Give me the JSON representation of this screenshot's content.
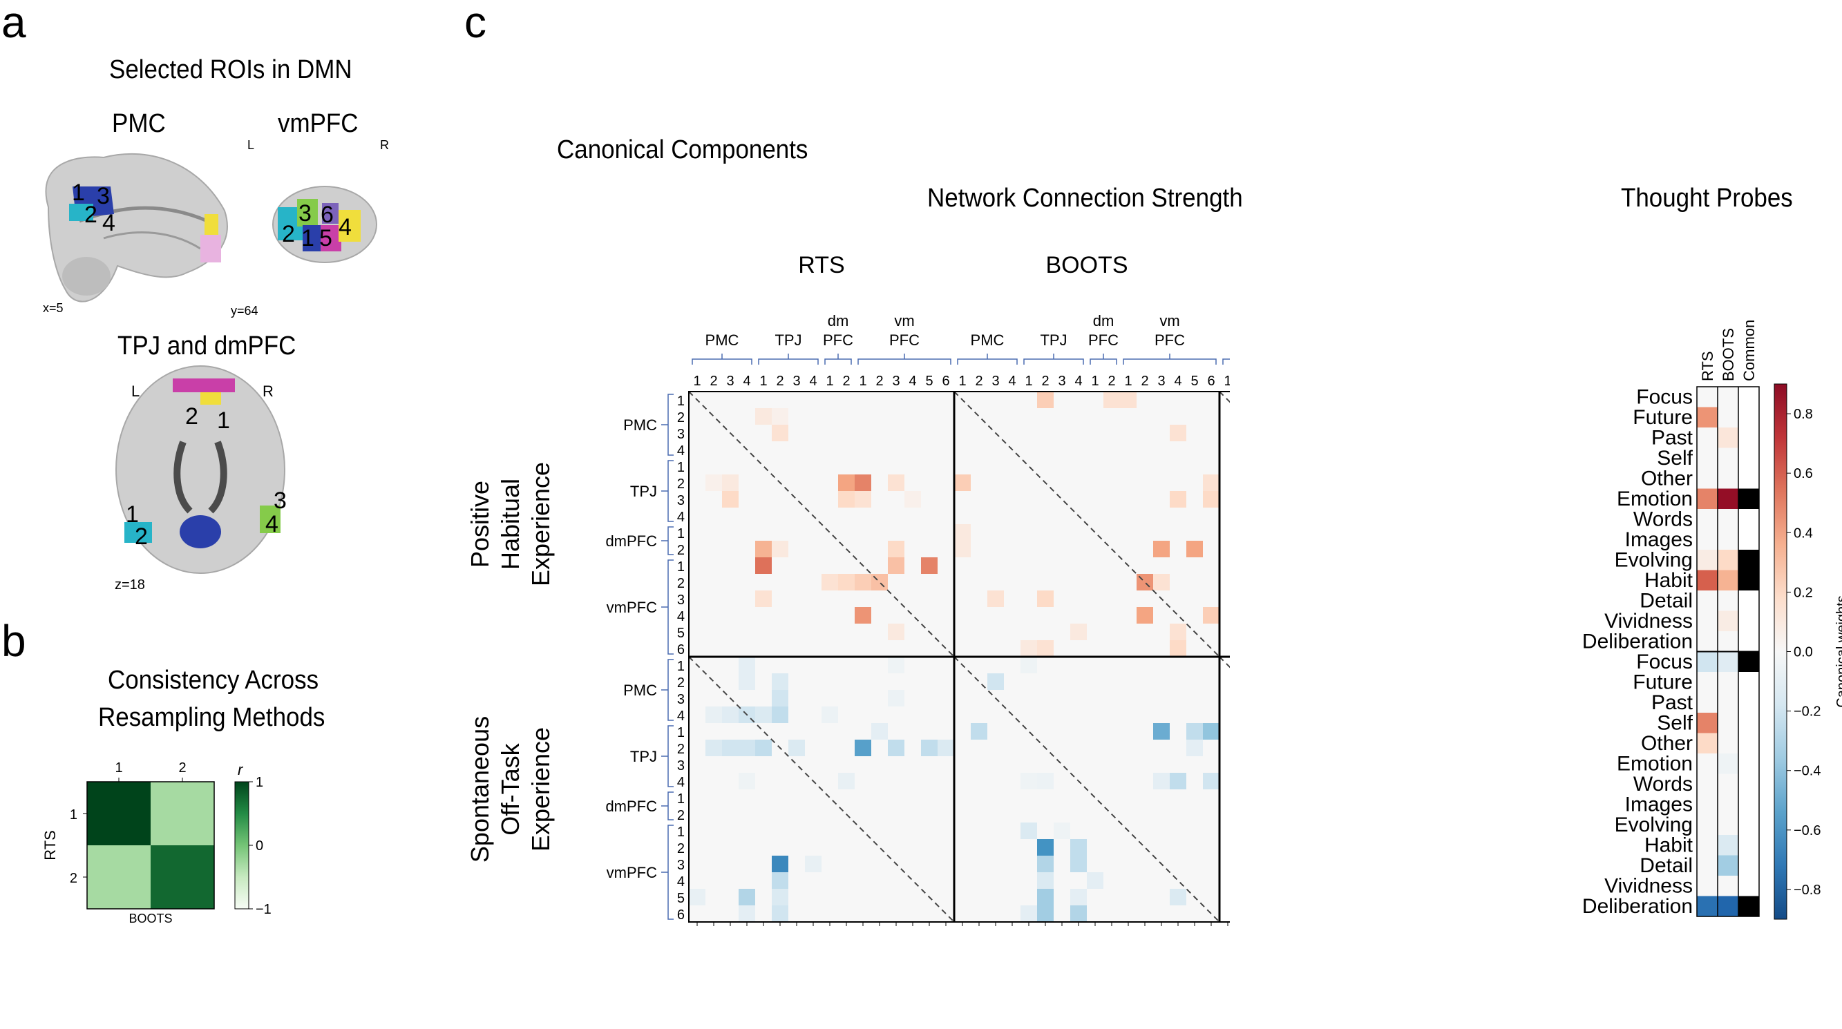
{
  "panels": {
    "a": "a",
    "b": "b",
    "c": "c"
  },
  "panel_a": {
    "title": "Selected ROIs in DMN",
    "pmc_label": "PMC",
    "vmpfc_label": "vmPFC",
    "tpj_label": "TPJ and dmPFC",
    "L": "L",
    "R": "R",
    "coord_x": "x=5",
    "coord_y": "y=64",
    "coord_z": "z=18",
    "pmc_rois": [
      "1",
      "3",
      "2",
      "4"
    ],
    "vmpfc_rois": [
      "3",
      "6",
      "2",
      "1",
      "5",
      "4"
    ],
    "tpj_rois": [
      "2",
      "1",
      "1",
      "2",
      "3",
      "4"
    ]
  },
  "panel_b": {
    "title_line1": "Consistency Across",
    "title_line2": "Resampling Methods",
    "colorbar_label": "r",
    "colorbar_ticks": [
      "1",
      "0",
      "−1"
    ],
    "xlabel": "BOOTS",
    "ylabel": "RTS",
    "col_ticks": [
      "1",
      "2"
    ],
    "row_ticks": [
      "1",
      "2"
    ],
    "cells": [
      [
        1.0,
        -0.3
      ],
      [
        -0.3,
        0.75
      ]
    ]
  },
  "panel_c": {
    "title": "Canonical Components",
    "network_title": "Network Connection Strength",
    "probes_title": "Thought Probes",
    "blocks": [
      "RTS",
      "BOOTS",
      "Common"
    ],
    "regions": [
      {
        "name": "PMC",
        "n": 4
      },
      {
        "name": "TPJ",
        "n": 4
      },
      {
        "name": "dmPFC",
        "n": 2
      },
      {
        "name": "vmPFC",
        "n": 6
      }
    ],
    "col_groups": [
      {
        "line1": "",
        "line2": "PMC"
      },
      {
        "line1": "",
        "line2": "TPJ"
      },
      {
        "line1": "dm",
        "line2": "PFC"
      },
      {
        "line1": "vm",
        "line2": "PFC"
      }
    ],
    "row_ticks": [
      "1",
      "2",
      "3",
      "4",
      "1",
      "2",
      "3",
      "4",
      "1",
      "2",
      "1",
      "2",
      "3",
      "4",
      "5",
      "6"
    ],
    "col_ticks": [
      "1",
      "2",
      "3",
      "4",
      "1",
      "2",
      "3",
      "4",
      "1",
      "2",
      "1",
      "2",
      "3",
      "4",
      "5",
      "6"
    ],
    "component_labels": [
      {
        "line1": "Positive",
        "line2": "Habitual",
        "line3": "Experience"
      },
      {
        "line1": "Spontaneous",
        "line2": "Off-Task",
        "line3": "Experience"
      }
    ],
    "probe_cols": [
      "RTS",
      "BOOTS",
      "Common"
    ],
    "probes": [
      "Focus",
      "Future",
      "Past",
      "Self",
      "Other",
      "Emotion",
      "Words",
      "Images",
      "Evolving",
      "Habit",
      "Detail",
      "Vividness",
      "Deliberation"
    ],
    "probe_weights": {
      "pos": [
        [
          0.0,
          0.0,
          0.0
        ],
        [
          0.45,
          0.0,
          0.0
        ],
        [
          0.0,
          0.12,
          0.0
        ],
        [
          0.0,
          0.0,
          0.0
        ],
        [
          0.0,
          0.0,
          0.0
        ],
        [
          0.5,
          0.88,
          1
        ],
        [
          0.0,
          0.0,
          0.0
        ],
        [
          0.0,
          0.0,
          0.0
        ],
        [
          0.08,
          0.2,
          1
        ],
        [
          0.6,
          0.35,
          1
        ],
        [
          0.0,
          0.0,
          0.0
        ],
        [
          0.0,
          0.08,
          0.0
        ],
        [
          0.0,
          0.0,
          0.0
        ]
      ],
      "neg": [
        [
          -0.2,
          -0.12,
          1
        ],
        [
          0.0,
          0.0,
          0.0
        ],
        [
          0.0,
          0.0,
          0.0
        ],
        [
          0.5,
          0.0,
          0.0
        ],
        [
          0.2,
          0.0,
          0.0
        ],
        [
          0.0,
          -0.05,
          0.0
        ],
        [
          0.0,
          0.0,
          0.0
        ],
        [
          0.0,
          0.0,
          0.0
        ],
        [
          0.0,
          0.0,
          0.0
        ],
        [
          0.0,
          -0.15,
          0.0
        ],
        [
          0.0,
          -0.35,
          0.0
        ],
        [
          0.0,
          0.0,
          0.0
        ],
        [
          -0.75,
          -0.8,
          1
        ]
      ]
    },
    "colorbar_label": "Canonical weights",
    "colorbar_ticks": [
      "0.8",
      "0.6",
      "0.4",
      "0.2",
      "0.0",
      "−0.2",
      "−0.4",
      "−0.6",
      "−0.8"
    ]
  }
}
